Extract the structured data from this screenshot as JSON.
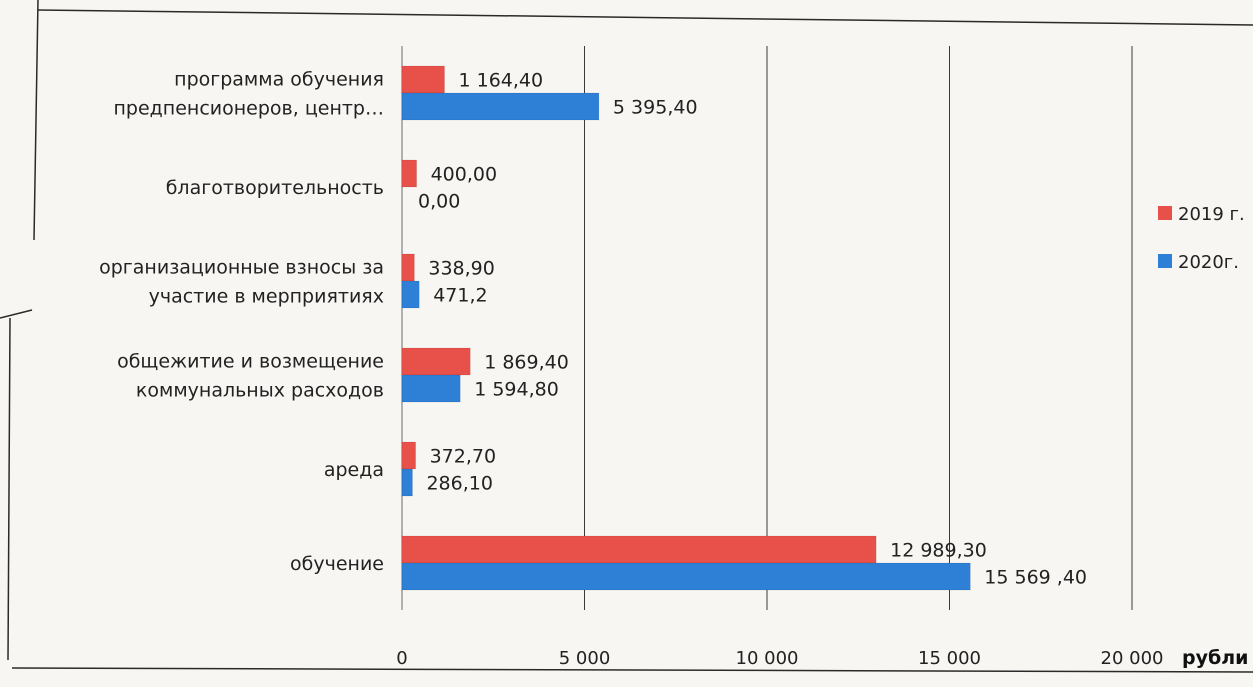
{
  "chart_data": {
    "type": "bar",
    "orientation": "horizontal",
    "categories": [
      "программа обучения предпенсионеров, центр…",
      "благотворительность",
      "организационные взносы за участие в мерприятиях",
      "общежитие и возмещение коммунальных расходов",
      "ареда",
      "обучение"
    ],
    "category_label_lines": [
      [
        "программа обучения",
        "предпенсионеров, центр…"
      ],
      [
        "благотворительность"
      ],
      [
        "организационные взносы за",
        "участие в мерприятиях"
      ],
      [
        "общежитие и возмещение",
        "коммунальных расходов"
      ],
      [
        "ареда"
      ],
      [
        "обучение"
      ]
    ],
    "series": [
      {
        "name": "2019 г.",
        "color": "#e8504a",
        "values": [
          1164.4,
          400.0,
          338.9,
          1869.4,
          372.7,
          12989.3
        ],
        "labels": [
          "1 164,40",
          "400,00",
          "338,90",
          "1 869,40",
          "372,70",
          "12 989,30"
        ]
      },
      {
        "name": "2020г.",
        "color": "#2e7fd6",
        "values": [
          5395.4,
          0.0,
          471.2,
          1594.8,
          286.1,
          15569.4
        ],
        "labels": [
          "5 395,40",
          "0,00",
          "471,2",
          "1 594,80",
          "286,10",
          "15 569 ,40"
        ]
      }
    ],
    "xlim": [
      0,
      20000
    ],
    "xticks": [
      0,
      5000,
      10000,
      15000,
      20000
    ],
    "xtick_labels": [
      "0",
      "5 000",
      "10 000",
      "15 000",
      "20 000"
    ],
    "xlabel": "рубли",
    "grid": true,
    "legend_position": "right"
  }
}
